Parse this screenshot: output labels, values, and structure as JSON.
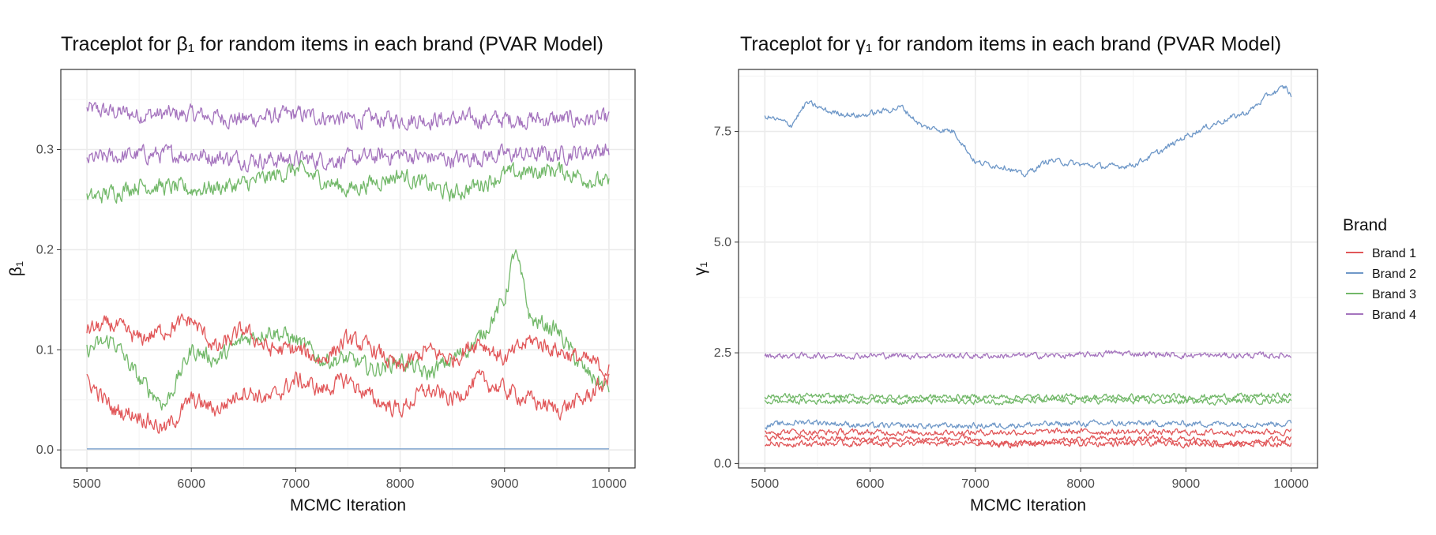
{
  "legend": {
    "title": "Brand",
    "items": [
      {
        "label": "Brand 1",
        "color": "#E15759"
      },
      {
        "label": "Brand 2",
        "color": "#6F98C8"
      },
      {
        "label": "Brand 3",
        "color": "#72B869"
      },
      {
        "label": "Brand 4",
        "color": "#A574BE"
      }
    ]
  },
  "chart_data": [
    {
      "type": "line",
      "title": "Traceplot for β₁ for random items in each brand (PVAR Model)",
      "xlabel": "MCMC Iteration",
      "ylabel": "β₁",
      "xlim": [
        4750,
        10250
      ],
      "ylim": [
        -0.018,
        0.38
      ],
      "xticks": [
        5000,
        6000,
        7000,
        8000,
        9000,
        10000
      ],
      "yticks": [
        0.0,
        0.1,
        0.2,
        0.3
      ],
      "ytick_labels": [
        "0.0",
        "0.1",
        "0.2",
        "0.3"
      ],
      "grid": true,
      "series": [
        {
          "brand": "Brand 4",
          "color": "#A574BE",
          "values": [
            [
              5000,
              0.34
            ],
            [
              5500,
              0.335
            ],
            [
              6000,
              0.335
            ],
            [
              6500,
              0.33
            ],
            [
              7000,
              0.335
            ],
            [
              7500,
              0.33
            ],
            [
              8000,
              0.33
            ],
            [
              8500,
              0.33
            ],
            [
              9000,
              0.33
            ],
            [
              9500,
              0.33
            ],
            [
              10000,
              0.33
            ]
          ]
        },
        {
          "brand": "Brand 4",
          "color": "#A574BE",
          "values": [
            [
              5000,
              0.29
            ],
            [
              5500,
              0.295
            ],
            [
              6000,
              0.295
            ],
            [
              6500,
              0.29
            ],
            [
              7000,
              0.29
            ],
            [
              7500,
              0.29
            ],
            [
              8000,
              0.295
            ],
            [
              8500,
              0.29
            ],
            [
              9000,
              0.295
            ],
            [
              9500,
              0.295
            ],
            [
              10000,
              0.3
            ]
          ]
        },
        {
          "brand": "Brand 3",
          "color": "#72B869",
          "values": [
            [
              5000,
              0.25
            ],
            [
              5500,
              0.265
            ],
            [
              6000,
              0.26
            ],
            [
              6500,
              0.265
            ],
            [
              7000,
              0.28
            ],
            [
              7500,
              0.26
            ],
            [
              8000,
              0.275
            ],
            [
              8500,
              0.255
            ],
            [
              9000,
              0.275
            ],
            [
              9500,
              0.28
            ],
            [
              10000,
              0.265
            ]
          ]
        },
        {
          "brand": "Brand 3",
          "color": "#72B869",
          "values": [
            [
              5000,
              0.1
            ],
            [
              5250,
              0.11
            ],
            [
              5500,
              0.07
            ],
            [
              5750,
              0.045
            ],
            [
              6000,
              0.1
            ],
            [
              6250,
              0.09
            ],
            [
              6500,
              0.11
            ],
            [
              6750,
              0.12
            ],
            [
              7000,
              0.11
            ],
            [
              7250,
              0.09
            ],
            [
              7500,
              0.09
            ],
            [
              7750,
              0.08
            ],
            [
              8000,
              0.09
            ],
            [
              8250,
              0.075
            ],
            [
              8500,
              0.09
            ],
            [
              8750,
              0.11
            ],
            [
              9000,
              0.15
            ],
            [
              9100,
              0.2
            ],
            [
              9250,
              0.13
            ],
            [
              9500,
              0.12
            ],
            [
              9750,
              0.08
            ],
            [
              10000,
              0.06
            ]
          ]
        },
        {
          "brand": "Brand 1",
          "color": "#E15759",
          "values": [
            [
              5000,
              0.12
            ],
            [
              5250,
              0.125
            ],
            [
              5500,
              0.11
            ],
            [
              5750,
              0.12
            ],
            [
              6000,
              0.13
            ],
            [
              6250,
              0.1
            ],
            [
              6500,
              0.12
            ],
            [
              6750,
              0.1
            ],
            [
              7000,
              0.1
            ],
            [
              7250,
              0.09
            ],
            [
              7500,
              0.11
            ],
            [
              7750,
              0.1
            ],
            [
              8000,
              0.08
            ],
            [
              8250,
              0.1
            ],
            [
              8500,
              0.09
            ],
            [
              8750,
              0.11
            ],
            [
              9000,
              0.09
            ],
            [
              9250,
              0.11
            ],
            [
              9500,
              0.1
            ],
            [
              9750,
              0.09
            ],
            [
              10000,
              0.08
            ]
          ]
        },
        {
          "brand": "Brand 1",
          "color": "#E15759",
          "values": [
            [
              5000,
              0.07
            ],
            [
              5250,
              0.04
            ],
            [
              5500,
              0.035
            ],
            [
              5750,
              0.02
            ],
            [
              6000,
              0.05
            ],
            [
              6250,
              0.04
            ],
            [
              6500,
              0.06
            ],
            [
              6750,
              0.05
            ],
            [
              7000,
              0.07
            ],
            [
              7250,
              0.06
            ],
            [
              7500,
              0.07
            ],
            [
              7750,
              0.05
            ],
            [
              8000,
              0.04
            ],
            [
              8250,
              0.06
            ],
            [
              8500,
              0.05
            ],
            [
              8750,
              0.07
            ],
            [
              9000,
              0.06
            ],
            [
              9250,
              0.05
            ],
            [
              9500,
              0.04
            ],
            [
              9750,
              0.05
            ],
            [
              10000,
              0.07
            ]
          ]
        },
        {
          "brand": "Brand 2",
          "color": "#6F98C8",
          "values": [
            [
              5000,
              0.001
            ],
            [
              10000,
              0.001
            ]
          ]
        }
      ]
    },
    {
      "type": "line",
      "title": "Traceplot for γ₁ for random items in each brand (PVAR Model)",
      "xlabel": "MCMC Iteration",
      "ylabel": "γ₁",
      "xlim": [
        4750,
        10250
      ],
      "ylim": [
        -0.1,
        8.9
      ],
      "xticks": [
        5000,
        6000,
        7000,
        8000,
        9000,
        10000
      ],
      "yticks": [
        0.0,
        2.5,
        5.0,
        7.5
      ],
      "ytick_labels": [
        "0.0",
        "2.5",
        "5.0",
        "7.5"
      ],
      "grid": true,
      "series": [
        {
          "brand": "Brand 2",
          "color": "#6F98C8",
          "values": [
            [
              5000,
              7.85
            ],
            [
              5250,
              7.65
            ],
            [
              5400,
              8.15
            ],
            [
              5600,
              7.95
            ],
            [
              5900,
              7.85
            ],
            [
              6100,
              7.95
            ],
            [
              6300,
              8.05
            ],
            [
              6500,
              7.6
            ],
            [
              6800,
              7.5
            ],
            [
              7000,
              6.8
            ],
            [
              7300,
              6.7
            ],
            [
              7450,
              6.5
            ],
            [
              7700,
              6.85
            ],
            [
              8000,
              6.75
            ],
            [
              8300,
              6.7
            ],
            [
              8500,
              6.75
            ],
            [
              8800,
              7.1
            ],
            [
              9000,
              7.4
            ],
            [
              9300,
              7.7
            ],
            [
              9600,
              7.95
            ],
            [
              9800,
              8.35
            ],
            [
              9950,
              8.5
            ],
            [
              10000,
              8.3
            ]
          ]
        },
        {
          "brand": "Brand 4",
          "color": "#A574BE",
          "values": [
            [
              5000,
              2.43
            ],
            [
              6000,
              2.44
            ],
            [
              7000,
              2.43
            ],
            [
              8000,
              2.44
            ],
            [
              8300,
              2.5
            ],
            [
              9000,
              2.44
            ],
            [
              10000,
              2.44
            ]
          ]
        },
        {
          "brand": "Brand 3",
          "color": "#72B869",
          "values": [
            [
              5000,
              1.52
            ],
            [
              6000,
              1.5
            ],
            [
              7000,
              1.5
            ],
            [
              8000,
              1.5
            ],
            [
              9000,
              1.5
            ],
            [
              10000,
              1.53
            ]
          ]
        },
        {
          "brand": "Brand 3",
          "color": "#72B869",
          "values": [
            [
              5000,
              1.4
            ],
            [
              6000,
              1.42
            ],
            [
              7000,
              1.4
            ],
            [
              8000,
              1.42
            ],
            [
              9000,
              1.4
            ],
            [
              10000,
              1.43
            ]
          ]
        },
        {
          "brand": "Brand 2",
          "color": "#6F98C8",
          "values": [
            [
              5000,
              0.85
            ],
            [
              5400,
              0.95
            ],
            [
              6000,
              0.85
            ],
            [
              7000,
              0.85
            ],
            [
              8000,
              0.9
            ],
            [
              9000,
              0.9
            ],
            [
              10000,
              0.9
            ]
          ]
        },
        {
          "brand": "Brand 1",
          "color": "#E15759",
          "values": [
            [
              5000,
              0.72
            ],
            [
              6000,
              0.7
            ],
            [
              7000,
              0.7
            ],
            [
              8000,
              0.72
            ],
            [
              9000,
              0.7
            ],
            [
              10000,
              0.72
            ]
          ]
        },
        {
          "brand": "Brand 1",
          "color": "#E15759",
          "values": [
            [
              5000,
              0.58
            ],
            [
              6000,
              0.55
            ],
            [
              7000,
              0.55
            ],
            [
              7100,
              0.4
            ],
            [
              8000,
              0.55
            ],
            [
              9000,
              0.55
            ],
            [
              9400,
              0.4
            ],
            [
              10000,
              0.58
            ]
          ]
        },
        {
          "brand": "Brand 1",
          "color": "#E15759",
          "values": [
            [
              5000,
              0.45
            ],
            [
              6000,
              0.45
            ],
            [
              7000,
              0.45
            ],
            [
              8000,
              0.45
            ],
            [
              9000,
              0.45
            ],
            [
              10000,
              0.45
            ]
          ]
        }
      ]
    }
  ]
}
